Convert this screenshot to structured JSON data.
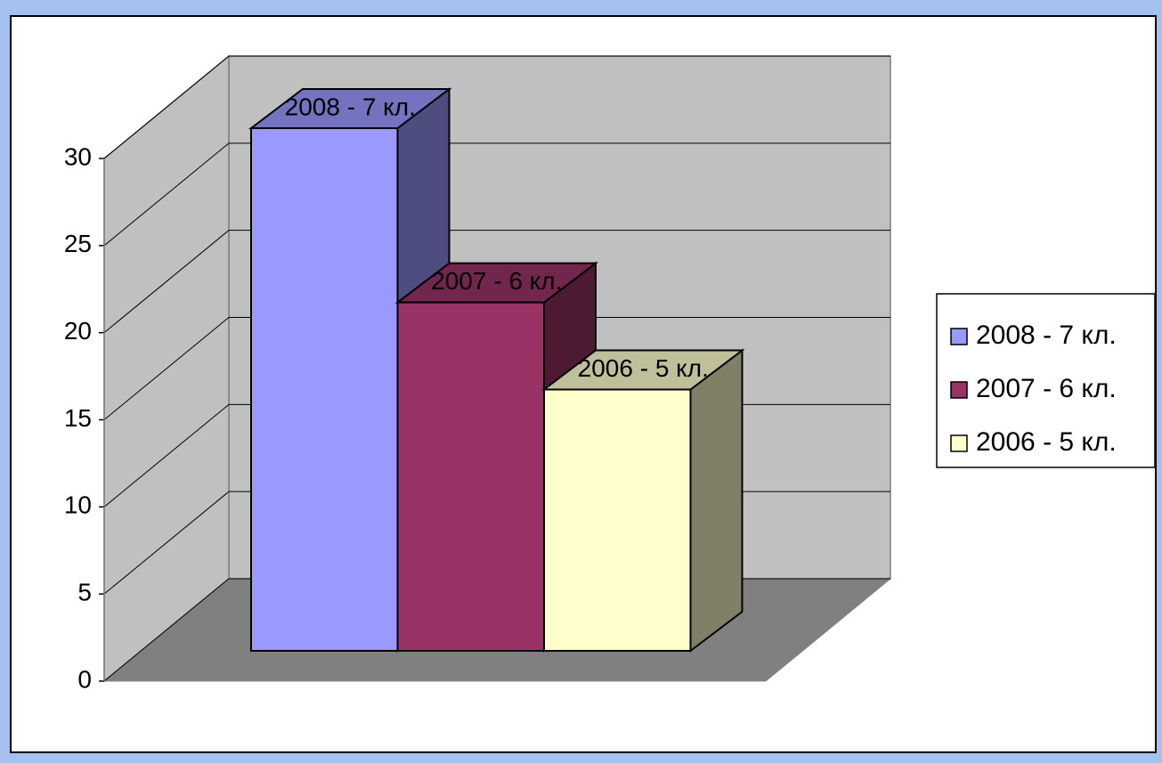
{
  "chart_data": {
    "type": "bar3d",
    "categories": [
      null
    ],
    "series": [
      {
        "name": "2008 - 7 кл.",
        "color": "#9999ff",
        "values": [
          30
        ]
      },
      {
        "name": "2007 - 6 кл.",
        "color": "#993366",
        "values": [
          20
        ]
      },
      {
        "name": "2006 - 5 кл.",
        "color": "#ffffcc",
        "values": [
          15
        ]
      }
    ],
    "ylim": [
      0,
      30
    ],
    "yticks": [
      0,
      5,
      10,
      15,
      20,
      25,
      30
    ],
    "grid": true,
    "legend": "right"
  }
}
